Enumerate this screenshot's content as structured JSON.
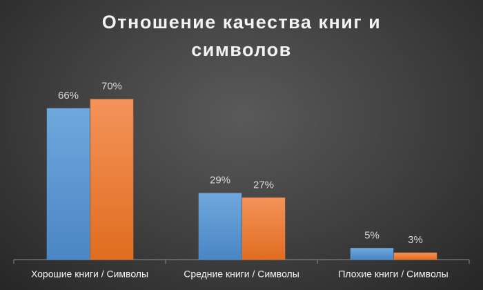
{
  "chart_data": {
    "type": "bar",
    "title": "Отношение качества книг и символов",
    "categories": [
      "Хорошие книги / Символы",
      "Средние  книги / Символы",
      "Плохие  книги / Символы"
    ],
    "series": [
      {
        "color": "#5b9bd5",
        "values": [
          66,
          29,
          5
        ],
        "value_labels": [
          "66%",
          "29%",
          "5%"
        ]
      },
      {
        "color": "#ed7d31",
        "values": [
          70,
          27,
          3
        ],
        "value_labels": [
          "70%",
          "27%",
          "3%"
        ]
      }
    ]
  }
}
